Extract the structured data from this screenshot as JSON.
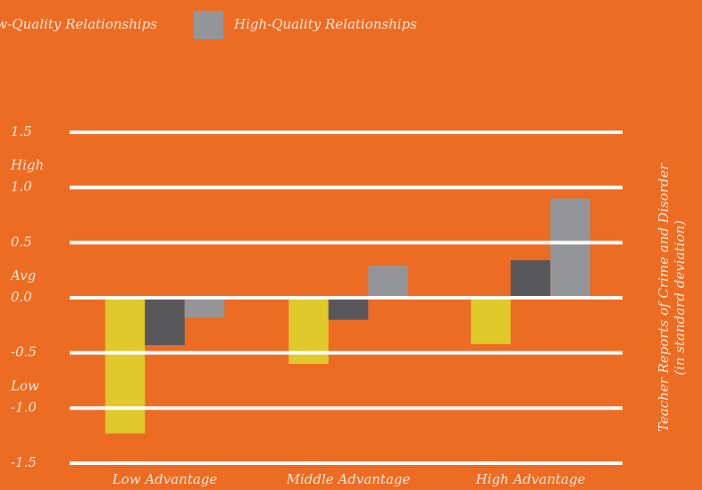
{
  "chart_data": {
    "type": "bar",
    "categories": [
      "Low Advantage",
      "Middle Advantage",
      "High Advantage"
    ],
    "series": [
      {
        "name": null,
        "color": "#e0c92a",
        "values": [
          -1.23,
          -0.6,
          -0.42
        ]
      },
      {
        "name": "Low-Quality Relationships",
        "color": "#58585a",
        "values": [
          -0.43,
          -0.2,
          0.34
        ]
      },
      {
        "name": "High-Quality Relationships",
        "color": "#939598",
        "values": [
          -0.18,
          0.29,
          0.9
        ]
      }
    ],
    "ylim": [
      -1.5,
      1.5
    ],
    "yticks": [
      -1.5,
      {
        "value": -1,
        "label": "-1.0"
      },
      -0.5,
      {
        "value": 0,
        "label": "0.0"
      },
      0.5,
      {
        "value": 1,
        "label": "1.0"
      },
      1.5
    ],
    "tick_notes": [
      {
        "value": 1,
        "label": "High"
      },
      {
        "value": 0,
        "label": "Avg"
      },
      {
        "value": -1,
        "label": "Low"
      }
    ],
    "ylabel": [
      "Teacher Reports of Crime and Disorder",
      "(in standard deviation)"
    ],
    "grid": true
  }
}
